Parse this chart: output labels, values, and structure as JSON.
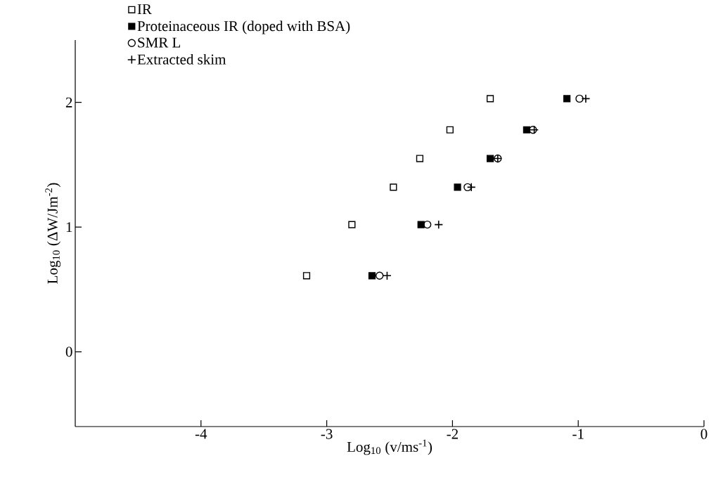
{
  "chart_data": {
    "type": "scatter",
    "xlabel": "Log$_{10}$ (v/ms$^{-1}$)",
    "ylabel": "Log$_{10}$ (ΔW/Jm$^{-2}$)",
    "xlim": [
      -5,
      0
    ],
    "ylim": [
      -0.6,
      2.5
    ],
    "xticks": [
      -4,
      -3,
      -2,
      -1,
      0
    ],
    "yticks": [
      0,
      1,
      2
    ],
    "grid": false,
    "legend": "top left",
    "series": [
      {
        "name": "IR",
        "color": "#000000",
        "marker": "square",
        "x": [
          -3.16,
          -2.8,
          -2.47,
          -2.26,
          -2.02,
          -1.7
        ],
        "values": [
          0.61,
          1.02,
          1.32,
          1.55,
          1.78,
          2.03
        ]
      },
      {
        "name": "Proteinaceous IR (doped with BSA)",
        "color": "#000000",
        "marker": "square",
        "x": [
          -2.64,
          -2.25,
          -1.96,
          -1.7,
          -1.41,
          -1.09
        ],
        "values": [
          0.61,
          1.02,
          1.32,
          1.55,
          1.78,
          2.03
        ]
      },
      {
        "name": "SMR L",
        "color": "#000000",
        "marker": "circle",
        "x": [
          -2.58,
          -2.2,
          -1.88,
          -1.64,
          -1.36,
          -0.99
        ],
        "values": [
          0.61,
          1.02,
          1.32,
          1.55,
          1.78,
          2.03
        ]
      },
      {
        "name": "Extracted skim",
        "color": "#000000",
        "marker": "cross",
        "x": [
          -2.52,
          -2.11,
          -1.85,
          -1.64,
          -1.35,
          -0.94
        ],
        "values": [
          0.61,
          1.02,
          1.32,
          1.55,
          1.78,
          2.03
        ]
      }
    ]
  }
}
